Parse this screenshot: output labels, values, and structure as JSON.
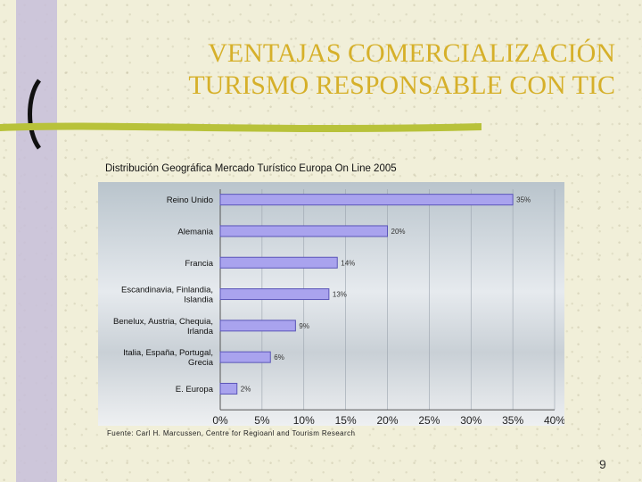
{
  "slide": {
    "title_line1": "VENTAJAS COMERCIALIZACIÓN",
    "title_line2": "TURISMO RESPONSABLE CON TIC",
    "page_number": "9",
    "title_color": "#d6b02a"
  },
  "chart_data": {
    "type": "bar",
    "orientation": "horizontal",
    "title": "Distribución Geográfica Mercado Turístico Europa On Line 2005",
    "source": "Fuente: Carl H. Marcussen, Centre for Regioanl and Tourism Research",
    "categories": [
      [
        "Reino Unido"
      ],
      [
        "Alemania"
      ],
      [
        "Francia"
      ],
      [
        "Escandinavia, Finlandia,",
        "Islandia"
      ],
      [
        "Benelux, Austria, Chequia,",
        "Irlanda"
      ],
      [
        "Italia, España, Portugal,",
        "Grecia"
      ],
      [
        "E. Europa"
      ]
    ],
    "values": [
      35,
      20,
      14,
      13,
      9,
      6,
      2
    ],
    "value_labels": [
      "35%",
      "20%",
      "14%",
      "13%",
      "9%",
      "6%",
      "2%"
    ],
    "xlim": [
      0,
      40
    ],
    "x_ticks": [
      "0%",
      "5%",
      "10%",
      "15%",
      "20%",
      "25%",
      "30%",
      "35%",
      "40%"
    ],
    "grid": true,
    "bar_color": "#a9a3ee",
    "bar_edge_color": "#5a55b8"
  }
}
